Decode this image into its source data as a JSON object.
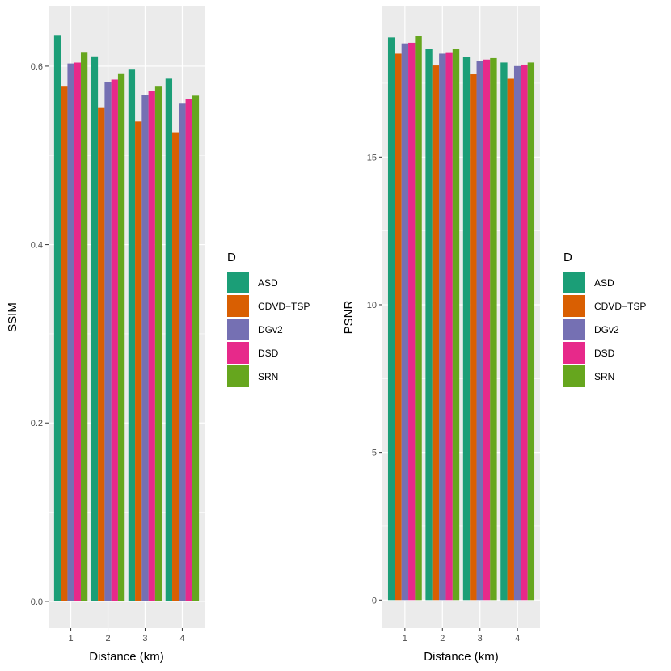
{
  "chart_data": [
    {
      "type": "bar",
      "categories": [
        "1",
        "2",
        "3",
        "4"
      ],
      "series": [
        {
          "name": "ASD",
          "color": "#1b9e77",
          "values": [
            0.635,
            0.611,
            0.597,
            0.586
          ]
        },
        {
          "name": "CDVD−TSP",
          "color": "#d95f02",
          "values": [
            0.578,
            0.554,
            0.538,
            0.526
          ]
        },
        {
          "name": "DGv2",
          "color": "#7570b3",
          "values": [
            0.603,
            0.582,
            0.568,
            0.558
          ]
        },
        {
          "name": "DSD",
          "color": "#e7298a",
          "values": [
            0.604,
            0.585,
            0.572,
            0.563
          ]
        },
        {
          "name": "SRN",
          "color": "#66a61e",
          "values": [
            0.616,
            0.592,
            0.578,
            0.567
          ]
        }
      ],
      "xlabel": "Distance (km)",
      "ylabel": "SSIM",
      "ylim": [
        -0.03,
        0.667
      ],
      "yticks": [
        0.0,
        0.2,
        0.4,
        0.6
      ],
      "ytick_labels": [
        "0.0",
        "0.2",
        "0.4",
        "0.6"
      ],
      "legend_title": "D",
      "legend_position": "right",
      "grid": true
    },
    {
      "type": "bar",
      "categories": [
        "1",
        "2",
        "3",
        "4"
      ],
      "series": [
        {
          "name": "ASD",
          "color": "#1b9e77",
          "values": [
            19.05,
            18.65,
            18.38,
            18.2
          ]
        },
        {
          "name": "CDVD−TSP",
          "color": "#d95f02",
          "values": [
            18.5,
            18.1,
            17.8,
            17.65
          ]
        },
        {
          "name": "DGv2",
          "color": "#7570b3",
          "values": [
            18.85,
            18.5,
            18.25,
            18.08
          ]
        },
        {
          "name": "DSD",
          "color": "#e7298a",
          "values": [
            18.87,
            18.55,
            18.3,
            18.13
          ]
        },
        {
          "name": "SRN",
          "color": "#66a61e",
          "values": [
            19.1,
            18.65,
            18.35,
            18.2
          ]
        }
      ],
      "xlabel": "Distance (km)",
      "ylabel": "PSNR",
      "ylim": [
        -0.95,
        20.1
      ],
      "yticks": [
        0,
        5,
        10,
        15
      ],
      "ytick_labels": [
        "0",
        "5",
        "10",
        "15"
      ],
      "legend_title": "D",
      "legend_position": "right",
      "grid": true
    }
  ]
}
